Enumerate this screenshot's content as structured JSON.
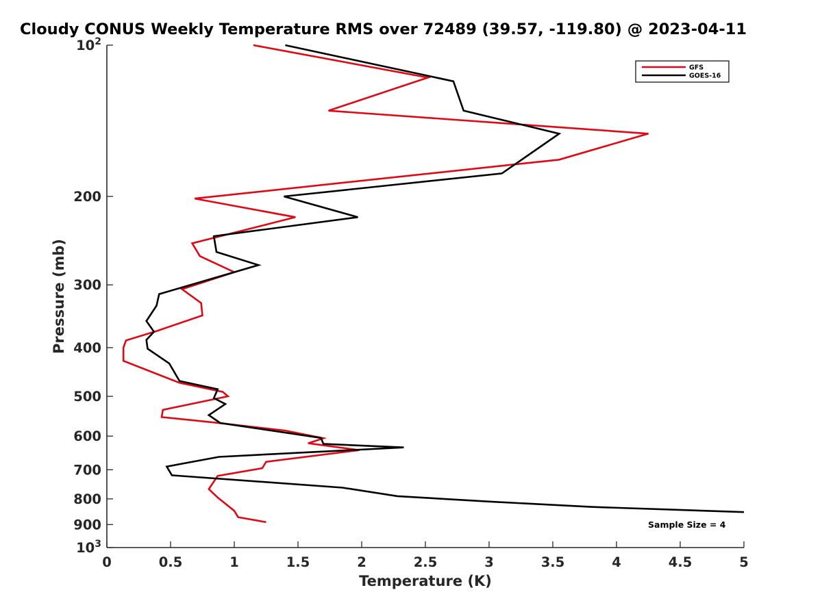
{
  "chart_data": {
    "type": "line",
    "title": "Cloudy CONUS Weekly Temperature RMS over 72489 (39.57, -119.80) @ 2023-04-11",
    "xlabel": "Temperature (K)",
    "ylabel": "Pressure (mb)",
    "xlim": [
      0,
      5
    ],
    "ylim": [
      100,
      1000
    ],
    "y_scale": "log",
    "y_reversed": true,
    "grid": false,
    "legend_position": "top-right",
    "x_ticks": [
      {
        "value": 0,
        "label": "0"
      },
      {
        "value": 0.5,
        "label": "0.5"
      },
      {
        "value": 1,
        "label": "1"
      },
      {
        "value": 1.5,
        "label": "1.5"
      },
      {
        "value": 2,
        "label": "2"
      },
      {
        "value": 2.5,
        "label": "2.5"
      },
      {
        "value": 3,
        "label": "3"
      },
      {
        "value": 3.5,
        "label": "3.5"
      },
      {
        "value": 4,
        "label": "4"
      },
      {
        "value": 4.5,
        "label": "4.5"
      },
      {
        "value": 5,
        "label": "5"
      }
    ],
    "y_ticks": [
      {
        "value": 100,
        "base": "10",
        "exp": "2"
      },
      {
        "value": 200,
        "label": "200"
      },
      {
        "value": 300,
        "label": "300"
      },
      {
        "value": 400,
        "label": "400"
      },
      {
        "value": 500,
        "label": "500"
      },
      {
        "value": 600,
        "label": "600"
      },
      {
        "value": 700,
        "label": "700"
      },
      {
        "value": 800,
        "label": "800"
      },
      {
        "value": 900,
        "label": "900"
      },
      {
        "value": 1000,
        "base": "10",
        "exp": "3"
      }
    ],
    "series": [
      {
        "name": "GFS",
        "color": "#e30613",
        "points": [
          [
            1.15,
            100
          ],
          [
            2.52,
            116
          ],
          [
            1.74,
            135
          ],
          [
            4.25,
            150
          ],
          [
            3.55,
            169
          ],
          [
            0.69,
            202
          ],
          [
            1.48,
            220
          ],
          [
            0.67,
            248
          ],
          [
            0.73,
            263
          ],
          [
            1.0,
            283
          ],
          [
            0.59,
            306
          ],
          [
            0.74,
            326
          ],
          [
            0.75,
            345
          ],
          [
            0.4,
            370
          ],
          [
            0.15,
            387
          ],
          [
            0.13,
            400
          ],
          [
            0.13,
            425
          ],
          [
            0.57,
            470
          ],
          [
            0.91,
            490
          ],
          [
            0.95,
            500
          ],
          [
            0.44,
            532
          ],
          [
            0.43,
            550
          ],
          [
            0.85,
            564
          ],
          [
            1.4,
            585
          ],
          [
            1.7,
            606
          ],
          [
            1.58,
            620
          ],
          [
            1.98,
            640
          ],
          [
            1.25,
            675
          ],
          [
            1.22,
            695
          ],
          [
            0.87,
            720
          ],
          [
            0.8,
            765
          ],
          [
            0.87,
            795
          ],
          [
            1.0,
            845
          ],
          [
            1.03,
            870
          ],
          [
            1.25,
            890
          ]
        ]
      },
      {
        "name": "GOES-16",
        "color": "#000000",
        "points": [
          [
            1.4,
            100
          ],
          [
            2.72,
            118
          ],
          [
            2.8,
            135
          ],
          [
            3.55,
            150
          ],
          [
            3.1,
            180
          ],
          [
            1.39,
            200
          ],
          [
            1.97,
            220
          ],
          [
            0.84,
            240
          ],
          [
            0.86,
            258
          ],
          [
            1.19,
            274
          ],
          [
            0.41,
            313
          ],
          [
            0.39,
            330
          ],
          [
            0.31,
            354
          ],
          [
            0.37,
            372
          ],
          [
            0.31,
            386
          ],
          [
            0.32,
            402
          ],
          [
            0.49,
            430
          ],
          [
            0.57,
            466
          ],
          [
            0.87,
            484
          ],
          [
            0.84,
            504
          ],
          [
            0.93,
            518
          ],
          [
            0.8,
            545
          ],
          [
            0.89,
            565
          ],
          [
            1.68,
            605
          ],
          [
            1.7,
            622
          ],
          [
            2.33,
            632
          ],
          [
            0.88,
            660
          ],
          [
            0.47,
            690
          ],
          [
            0.51,
            718
          ],
          [
            1.85,
            760
          ],
          [
            2.28,
            790
          ],
          [
            3.0,
            810
          ],
          [
            3.8,
            830
          ],
          [
            5.0,
            850
          ]
        ]
      }
    ],
    "annotation": "Sample Size = 4"
  }
}
